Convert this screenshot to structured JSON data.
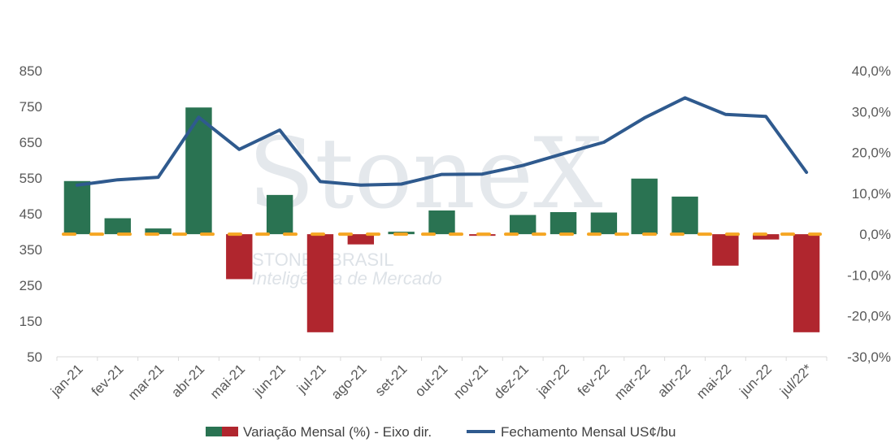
{
  "chart_data": {
    "type": "bar+line",
    "categories": [
      "jan-21",
      "fev-21",
      "mar-21",
      "abr-21",
      "mai-21",
      "jun-21",
      "jul-21",
      "ago-21",
      "set-21",
      "out-21",
      "nov-21",
      "dez-21",
      "jan-22",
      "fev-22",
      "mar-22",
      "abr-22",
      "mai-22",
      "jun-22",
      "jul/22*"
    ],
    "series": [
      {
        "name": "Variação Mensal (%) - Eixo dir.",
        "axis": "right",
        "type": "bar",
        "values": [
          13.0,
          3.9,
          1.4,
          31.0,
          -11.0,
          9.6,
          -24.0,
          -2.5,
          0.6,
          5.8,
          -0.4,
          4.7,
          5.4,
          5.3,
          13.6,
          9.2,
          -7.7,
          -1.3,
          -24.0
        ],
        "positive_color": "#2a7352",
        "negative_color": "#b0262e"
      },
      {
        "name": "Fechamento Mensal US¢/bu",
        "axis": "left",
        "type": "line",
        "values": [
          530,
          545,
          552,
          720,
          630,
          684,
          540,
          530,
          533,
          560,
          561,
          585,
          618,
          650,
          718,
          774,
          728,
          722,
          566
        ],
        "color": "#2f5a8e"
      }
    ],
    "zero_reference": {
      "axis": "right",
      "value": 0,
      "color": "#f5a623",
      "style": "dashed"
    },
    "left_axis": {
      "min": 50,
      "max": 850,
      "ticks": [
        "50",
        "150",
        "250",
        "350",
        "450",
        "550",
        "650",
        "750",
        "850"
      ]
    },
    "right_axis": {
      "min": -30,
      "max": 40,
      "ticks": [
        "-30,0%",
        "-20,0%",
        "-10,0%",
        "0,0%",
        "10,0%",
        "20,0%",
        "30,0%",
        "40,0%"
      ]
    },
    "grid": false,
    "legend_position": "bottom",
    "watermark": {
      "brand": "StoneX",
      "line1": "STONEX BRASIL",
      "line2": "Inteligência de Mercado"
    }
  }
}
